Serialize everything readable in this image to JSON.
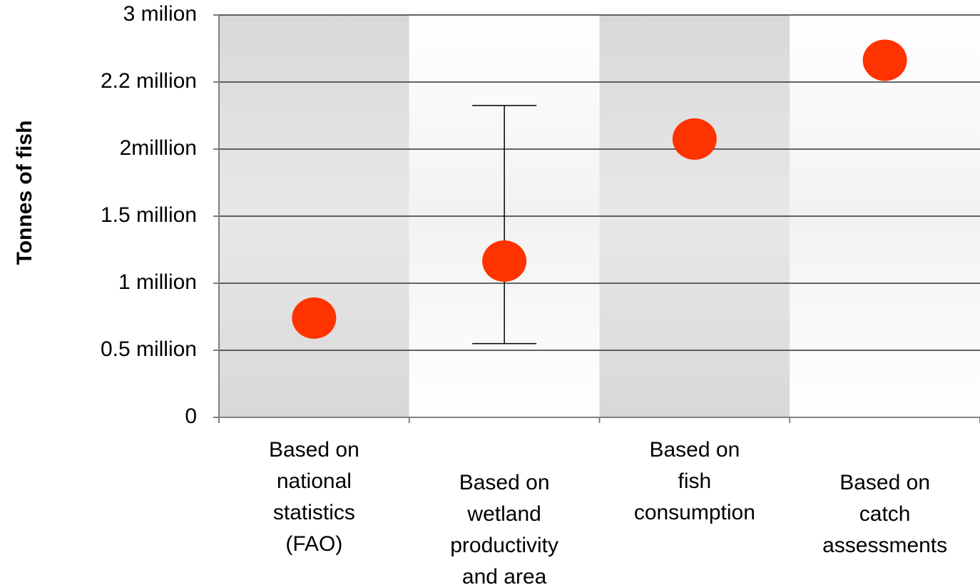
{
  "chart_data": {
    "type": "scatter",
    "y_label": "Tonnes of fish",
    "categories": [
      [
        "Based on",
        "national",
        "statistics",
        "(FAO)"
      ],
      [
        "Based on",
        "wetland",
        "productivity",
        "and area"
      ],
      [
        "Based on",
        "fish",
        "consumption"
      ],
      [
        "Based on",
        "catch",
        "assessments"
      ]
    ],
    "values": [
      740000,
      1165000,
      2030000,
      2460000
    ],
    "error_low": [
      null,
      550000,
      null,
      null
    ],
    "error_high": [
      null,
      2130000,
      null,
      null
    ],
    "color": "#ff3300",
    "ylim": [
      0,
      3000000
    ],
    "yticks": [
      0,
      {
        "value": 500000,
        "label": "0.5 million"
      },
      {
        "value": 1000000,
        "label": "1 million"
      },
      {
        "value": 1500000,
        "label": "1.5 million"
      },
      {
        "value": 2000000,
        "label": "2milllion"
      },
      {
        "value": 2200000,
        "label": "2.2 million"
      },
      {
        "value": 3000000,
        "label": "3 milion"
      }
    ],
    "grid": true
  }
}
